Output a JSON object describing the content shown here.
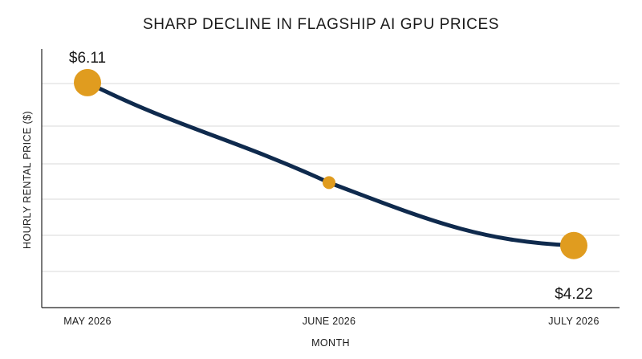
{
  "chart_data": {
    "type": "line",
    "title": "SHARP DECLINE IN FLAGSHIP AI GPU PRICES",
    "xlabel": "MONTH",
    "ylabel": "HOURLY RENTAL PRICE ($)",
    "categories": [
      "MAY 2026",
      "JUNE 2026",
      "JULY 2026"
    ],
    "series": [
      {
        "values": [
          6.11,
          4.95,
          4.22
        ]
      }
    ],
    "data_labels": [
      "$6.11",
      "",
      "$4.22"
    ],
    "ylim": [
      3.5,
      6.5
    ],
    "grid": true,
    "line_color": "#0f2a4d",
    "marker_color": "#e09c1f",
    "axis_color": "#222222",
    "grid_color": "#d9d9d9"
  }
}
